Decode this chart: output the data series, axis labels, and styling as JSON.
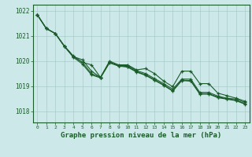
{
  "title": "Graphe pression niveau de la mer (hPa)",
  "bg_color": "#cce8e8",
  "grid_color": "#aacccc",
  "line_color": "#1a5c2a",
  "xlim": [
    -0.5,
    23.5
  ],
  "ylim": [
    1017.55,
    1022.25
  ],
  "yticks": [
    1018,
    1019,
    1020,
    1021,
    1022
  ],
  "xticks": [
    0,
    1,
    2,
    3,
    4,
    5,
    6,
    7,
    8,
    9,
    10,
    11,
    12,
    13,
    14,
    15,
    16,
    17,
    18,
    19,
    20,
    21,
    22,
    23
  ],
  "series": [
    [
      1021.85,
      1021.3,
      1021.1,
      1020.6,
      1020.2,
      1019.95,
      1019.85,
      1019.35,
      1020.0,
      1019.85,
      1019.85,
      1019.65,
      1019.7,
      1019.5,
      1019.2,
      1018.98,
      1019.6,
      1019.6,
      1019.1,
      1019.1,
      1018.72,
      1018.62,
      1018.52,
      1018.4
    ],
    [
      1021.85,
      1021.3,
      1021.1,
      1020.6,
      1020.18,
      1020.05,
      1019.6,
      1019.35,
      1019.95,
      1019.82,
      1019.82,
      1019.62,
      1019.5,
      1019.3,
      1019.1,
      1018.88,
      1019.28,
      1019.28,
      1018.75,
      1018.75,
      1018.6,
      1018.52,
      1018.48,
      1018.35
    ],
    [
      1021.85,
      1021.3,
      1021.1,
      1020.6,
      1020.18,
      1019.95,
      1019.5,
      1019.35,
      1019.95,
      1019.82,
      1019.78,
      1019.58,
      1019.45,
      1019.25,
      1019.05,
      1018.82,
      1019.24,
      1019.22,
      1018.7,
      1018.7,
      1018.56,
      1018.5,
      1018.44,
      1018.3
    ],
    [
      1021.85,
      1021.3,
      1021.1,
      1020.58,
      1020.15,
      1019.88,
      1019.45,
      1019.33,
      1019.93,
      1019.8,
      1019.76,
      1019.56,
      1019.43,
      1019.23,
      1019.03,
      1018.8,
      1019.22,
      1019.2,
      1018.68,
      1018.68,
      1018.54,
      1018.48,
      1018.42,
      1018.28
    ]
  ]
}
